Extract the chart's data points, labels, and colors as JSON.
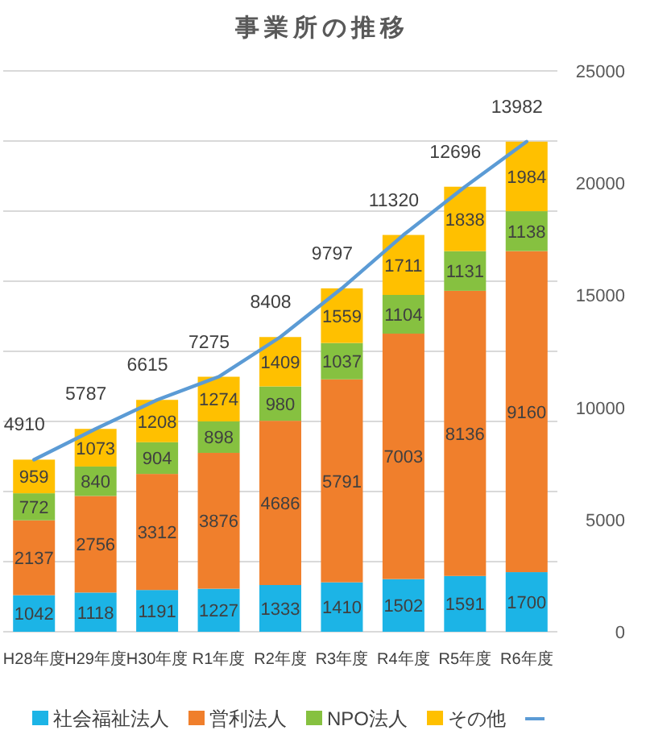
{
  "chart_data": {
    "type": "bar",
    "title": "事業所の推移",
    "stacked": true,
    "categories": [
      "H28年度",
      "H29年度",
      "H30年度",
      "R1年度",
      "R2年度",
      "R3年度",
      "R4年度",
      "R5年度",
      "R6年度"
    ],
    "series": [
      {
        "name": "社会福祉法人",
        "color": "#1cb4e6",
        "values": [
          1042,
          1118,
          1191,
          1227,
          1333,
          1410,
          1502,
          1591,
          1700
        ]
      },
      {
        "name": "営利法人",
        "color": "#f07f2c",
        "values": [
          2137,
          2756,
          3312,
          3876,
          4686,
          5791,
          7003,
          8136,
          9160
        ]
      },
      {
        "name": "NPO法人",
        "color": "#86c140",
        "values": [
          772,
          840,
          904,
          898,
          980,
          1037,
          1104,
          1131,
          1138
        ]
      },
      {
        "name": "その他",
        "color": "#ffc000",
        "values": [
          959,
          1073,
          1208,
          1274,
          1409,
          1559,
          1711,
          1838,
          1984
        ]
      },
      {
        "type": "line",
        "color": "#5b9bd5",
        "values": [
          4910,
          5787,
          6615,
          7275,
          8408,
          9797,
          11320,
          12696,
          13982
        ]
      }
    ],
    "data_labels": true,
    "ylim": [
      0,
      16000
    ],
    "yticks": [
      {
        "value": 0,
        "label": null
      },
      {
        "value": 2000,
        "label": null
      },
      {
        "value": 4000,
        "label": null
      },
      {
        "value": 6000,
        "label": null
      },
      {
        "value": 8000,
        "label": null
      },
      {
        "value": 10000,
        "label": null
      },
      {
        "value": 12000,
        "label": null
      },
      {
        "value": 14000,
        "label": null
      },
      {
        "value": 16000,
        "label": null
      }
    ],
    "y2lim": [
      0,
      25000
    ],
    "y2ticks": [
      0,
      5000,
      10000,
      15000,
      20000,
      25000
    ],
    "grid": "y",
    "legend": "bottom"
  }
}
